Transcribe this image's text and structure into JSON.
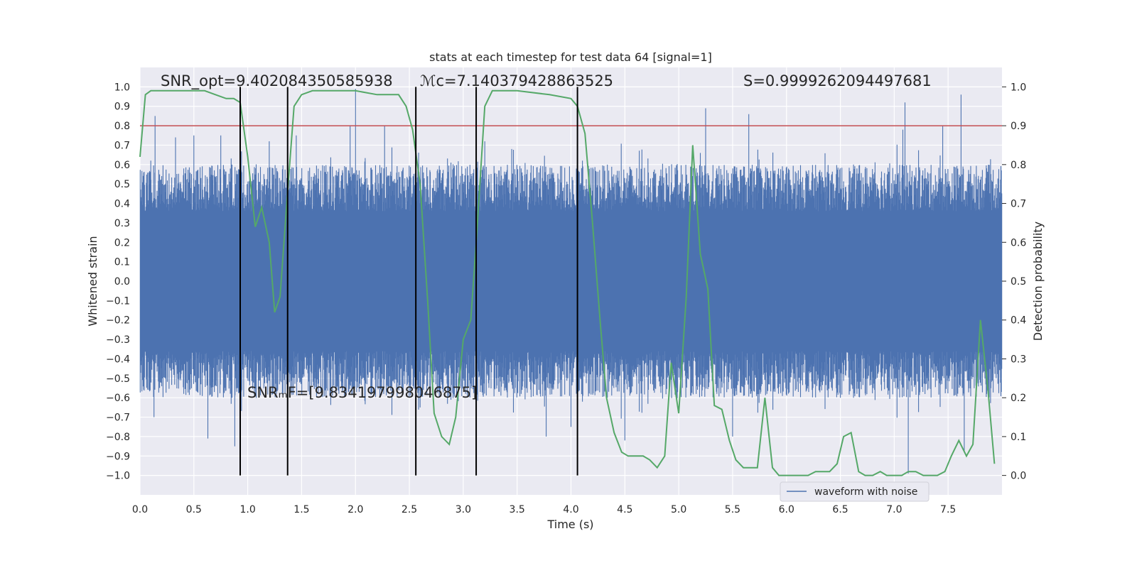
{
  "chart_data": {
    "type": "line",
    "title": "stats at each timestep for test data 64 [signal=1]",
    "xlabel": "Time (s)",
    "ylabel": "Whitened strain",
    "ylabel_right": "Detection probability",
    "xlim": [
      0.0,
      8.0
    ],
    "ylim": [
      -1.1,
      1.1
    ],
    "ylim_right": [
      -0.05,
      1.05
    ],
    "xticks": [
      "0.0",
      "0.5",
      "1.0",
      "1.5",
      "2.0",
      "2.5",
      "3.0",
      "3.5",
      "4.0",
      "4.5",
      "5.0",
      "5.5",
      "6.0",
      "6.5",
      "7.0",
      "7.5"
    ],
    "yticks": [
      "1.0",
      "0.9",
      "0.8",
      "0.7",
      "0.6",
      "0.5",
      "0.4",
      "0.3",
      "0.2",
      "0.1",
      "0.0",
      "−0.1",
      "−0.2",
      "−0.3",
      "−0.4",
      "−0.5",
      "−0.6",
      "−0.7",
      "−0.8",
      "−0.9",
      "−1.0"
    ],
    "yticks_right": [
      "1.0",
      "0.9",
      "0.8",
      "0.7",
      "0.6",
      "0.5",
      "0.4",
      "0.3",
      "0.2",
      "0.1",
      "0.0"
    ],
    "grid": true,
    "legend_position": "lower-right",
    "annotations": {
      "snr_opt": "SNR_opt=9.402084350585938",
      "mc": "ℳc=7.140379428863525",
      "s": "S=0.9999262094497681",
      "snr_mf": "SNRₘF=[9.834197998046875]"
    },
    "threshold_right": 0.9,
    "vertical_lines_x": [
      0.93,
      1.37,
      2.56,
      3.12,
      4.06
    ],
    "waveform": {
      "name": "waveform with noise",
      "color": "#4c72b0",
      "peaks": [
        {
          "x": 0.1,
          "y": 0.62
        },
        {
          "x": 0.13,
          "y": -0.7
        },
        {
          "x": 0.14,
          "y": 0.85
        },
        {
          "x": 0.33,
          "y": 0.74
        },
        {
          "x": 0.5,
          "y": 0.75
        },
        {
          "x": 0.63,
          "y": -0.81
        },
        {
          "x": 0.75,
          "y": 0.75
        },
        {
          "x": 0.88,
          "y": -0.85
        },
        {
          "x": 1.2,
          "y": 0.72
        },
        {
          "x": 1.45,
          "y": 0.75
        },
        {
          "x": 1.95,
          "y": 0.8
        },
        {
          "x": 2.0,
          "y": 0.99
        },
        {
          "x": 2.27,
          "y": 0.8
        },
        {
          "x": 2.6,
          "y": -0.65
        },
        {
          "x": 3.2,
          "y": 0.72
        },
        {
          "x": 3.45,
          "y": 0.68
        },
        {
          "x": 3.77,
          "y": -0.8
        },
        {
          "x": 4.0,
          "y": -0.75
        },
        {
          "x": 4.5,
          "y": -0.82
        },
        {
          "x": 5.2,
          "y": 0.66
        },
        {
          "x": 5.25,
          "y": 0.89
        },
        {
          "x": 5.5,
          "y": -0.8
        },
        {
          "x": 5.65,
          "y": 0.86
        },
        {
          "x": 6.5,
          "y": -0.6
        },
        {
          "x": 7.08,
          "y": 0.78
        },
        {
          "x": 7.1,
          "y": 0.92
        },
        {
          "x": 7.13,
          "y": -0.99
        },
        {
          "x": 7.45,
          "y": 0.8
        },
        {
          "x": 7.62,
          "y": 0.96
        },
        {
          "x": 7.65,
          "y": -0.88
        }
      ]
    },
    "probability": {
      "color": "#55a868",
      "x": [
        0.0,
        0.05,
        0.1,
        0.2,
        0.4,
        0.6,
        0.7,
        0.8,
        0.87,
        0.93,
        1.0,
        1.07,
        1.13,
        1.2,
        1.25,
        1.3,
        1.37,
        1.43,
        1.5,
        1.6,
        1.8,
        2.0,
        2.2,
        2.33,
        2.4,
        2.47,
        2.53,
        2.6,
        2.67,
        2.73,
        2.8,
        2.87,
        2.93,
        3.0,
        3.07,
        3.12,
        3.2,
        3.27,
        3.33,
        3.5,
        3.8,
        4.0,
        4.06,
        4.13,
        4.2,
        4.27,
        4.33,
        4.4,
        4.47,
        4.53,
        4.6,
        4.67,
        4.73,
        4.8,
        4.87,
        4.93,
        5.0,
        5.07,
        5.13,
        5.2,
        5.27,
        5.33,
        5.4,
        5.47,
        5.53,
        5.6,
        5.67,
        5.73,
        5.8,
        5.87,
        5.93,
        6.0,
        6.07,
        6.2,
        6.27,
        6.33,
        6.4,
        6.47,
        6.53,
        6.6,
        6.67,
        6.73,
        6.8,
        6.87,
        6.93,
        7.0,
        7.07,
        7.13,
        7.2,
        7.27,
        7.33,
        7.4,
        7.47,
        7.53,
        7.6,
        7.67,
        7.73,
        7.8,
        7.87,
        7.93
      ],
      "y": [
        0.82,
        0.98,
        0.99,
        0.99,
        0.99,
        0.99,
        0.98,
        0.97,
        0.97,
        0.96,
        0.82,
        0.64,
        0.69,
        0.6,
        0.42,
        0.46,
        0.73,
        0.95,
        0.98,
        0.99,
        0.99,
        0.99,
        0.98,
        0.98,
        0.98,
        0.95,
        0.89,
        0.75,
        0.45,
        0.16,
        0.1,
        0.08,
        0.15,
        0.35,
        0.4,
        0.6,
        0.95,
        0.99,
        0.99,
        0.99,
        0.98,
        0.97,
        0.95,
        0.88,
        0.65,
        0.4,
        0.2,
        0.11,
        0.06,
        0.05,
        0.05,
        0.05,
        0.04,
        0.02,
        0.05,
        0.29,
        0.16,
        0.46,
        0.85,
        0.57,
        0.48,
        0.18,
        0.17,
        0.09,
        0.04,
        0.02,
        0.02,
        0.02,
        0.2,
        0.02,
        0.0,
        0.0,
        0.0,
        0.0,
        0.01,
        0.01,
        0.01,
        0.03,
        0.1,
        0.11,
        0.01,
        0.0,
        0.0,
        0.01,
        0.0,
        0.0,
        0.0,
        0.01,
        0.01,
        0.0,
        0.0,
        0.0,
        0.01,
        0.05,
        0.09,
        0.05,
        0.08,
        0.4,
        0.22,
        0.03
      ]
    }
  }
}
